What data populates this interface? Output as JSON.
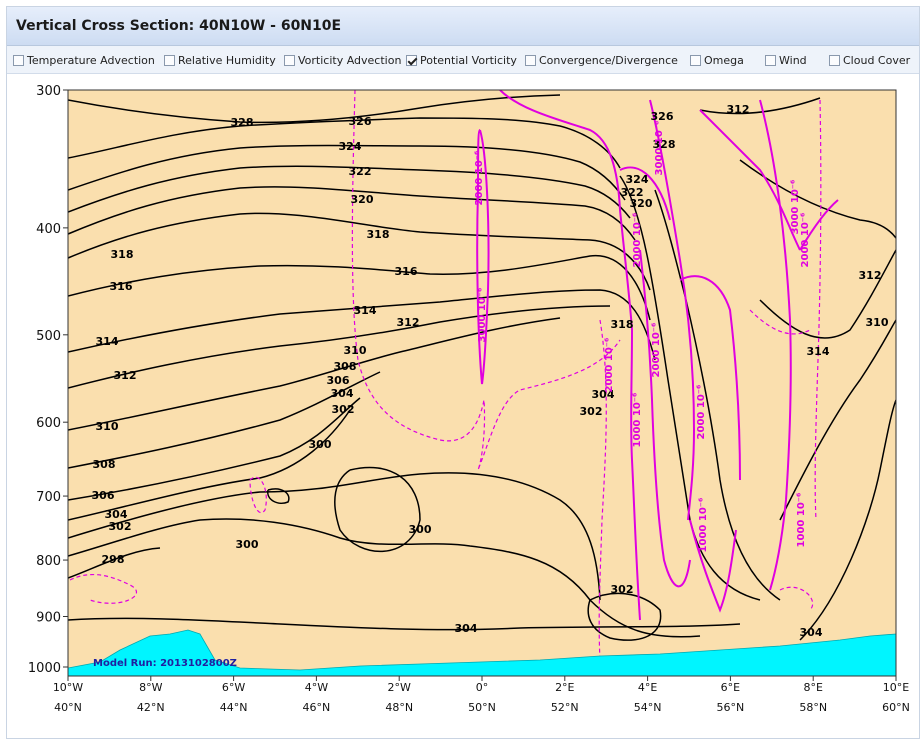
{
  "title": "Vertical Cross Section: 40N10W - 60N10E",
  "options": [
    {
      "label": "Temperature Advection",
      "checked": false
    },
    {
      "label": "Relative Humidity",
      "checked": false
    },
    {
      "label": "Vorticity Advection",
      "checked": false
    },
    {
      "label": "Potential Vorticity",
      "checked": true
    },
    {
      "label": "Convergence/Divergence",
      "checked": false
    },
    {
      "label": "Omega",
      "checked": false
    },
    {
      "label": "Wind",
      "checked": false
    },
    {
      "label": "Cloud Cover",
      "checked": false
    }
  ],
  "colors": {
    "background_fill": "#fadfae",
    "terrain": "#00f5ff",
    "isentrope": "#000000",
    "pv": "#e000e0",
    "model_run_text": "#2020a0"
  },
  "chart_data": {
    "type": "contour",
    "y_ticks": [
      "300",
      "400",
      "500",
      "600",
      "700",
      "800",
      "900",
      "1000"
    ],
    "y_values": [
      300,
      400,
      500,
      600,
      700,
      800,
      900,
      1000
    ],
    "ylim": [
      1000,
      300
    ],
    "y_scale": "log",
    "x_lon_ticks": [
      "10°W",
      "8°W",
      "6°W",
      "4°W",
      "2°W",
      "0°",
      "2°E",
      "4°E",
      "6°E",
      "8°E",
      "10°E"
    ],
    "x_lat_ticks": [
      "40°N",
      "42°N",
      "44°N",
      "46°N",
      "48°N",
      "50°N",
      "52°N",
      "54°N",
      "56°N",
      "58°N",
      "60°N"
    ],
    "model_run": "Model Run: 2013102800Z",
    "isentropes_K": [
      298,
      300,
      302,
      304,
      306,
      308,
      310,
      312,
      314,
      316,
      318,
      320,
      322,
      324,
      326,
      328
    ],
    "isentrope_labels": [
      "328",
      "326",
      "324",
      "322",
      "320",
      "318",
      "316",
      "314",
      "312",
      "310",
      "308",
      "306",
      "304",
      "302",
      "300",
      "298",
      "300",
      "300",
      "302",
      "304",
      "306",
      "308",
      "310",
      "312",
      "314",
      "316",
      "318",
      "302",
      "304",
      "304",
      "310",
      "312",
      "314",
      "312",
      "326",
      "328",
      "324",
      "322",
      "320",
      "318",
      "302",
      "304"
    ],
    "pv_labels": [
      "2000 10⁻⁶",
      "3000 10⁻⁶",
      "2000 10⁻⁶",
      "2000 10⁻⁶",
      "1000 10⁻⁶",
      "2000 10⁻⁶",
      "3000 10⁻⁶",
      "2000 10⁻⁶",
      "1000 10⁻⁶",
      "3000 10⁻⁶",
      "2000 10⁻⁶",
      "1000 10⁻⁶"
    ]
  }
}
